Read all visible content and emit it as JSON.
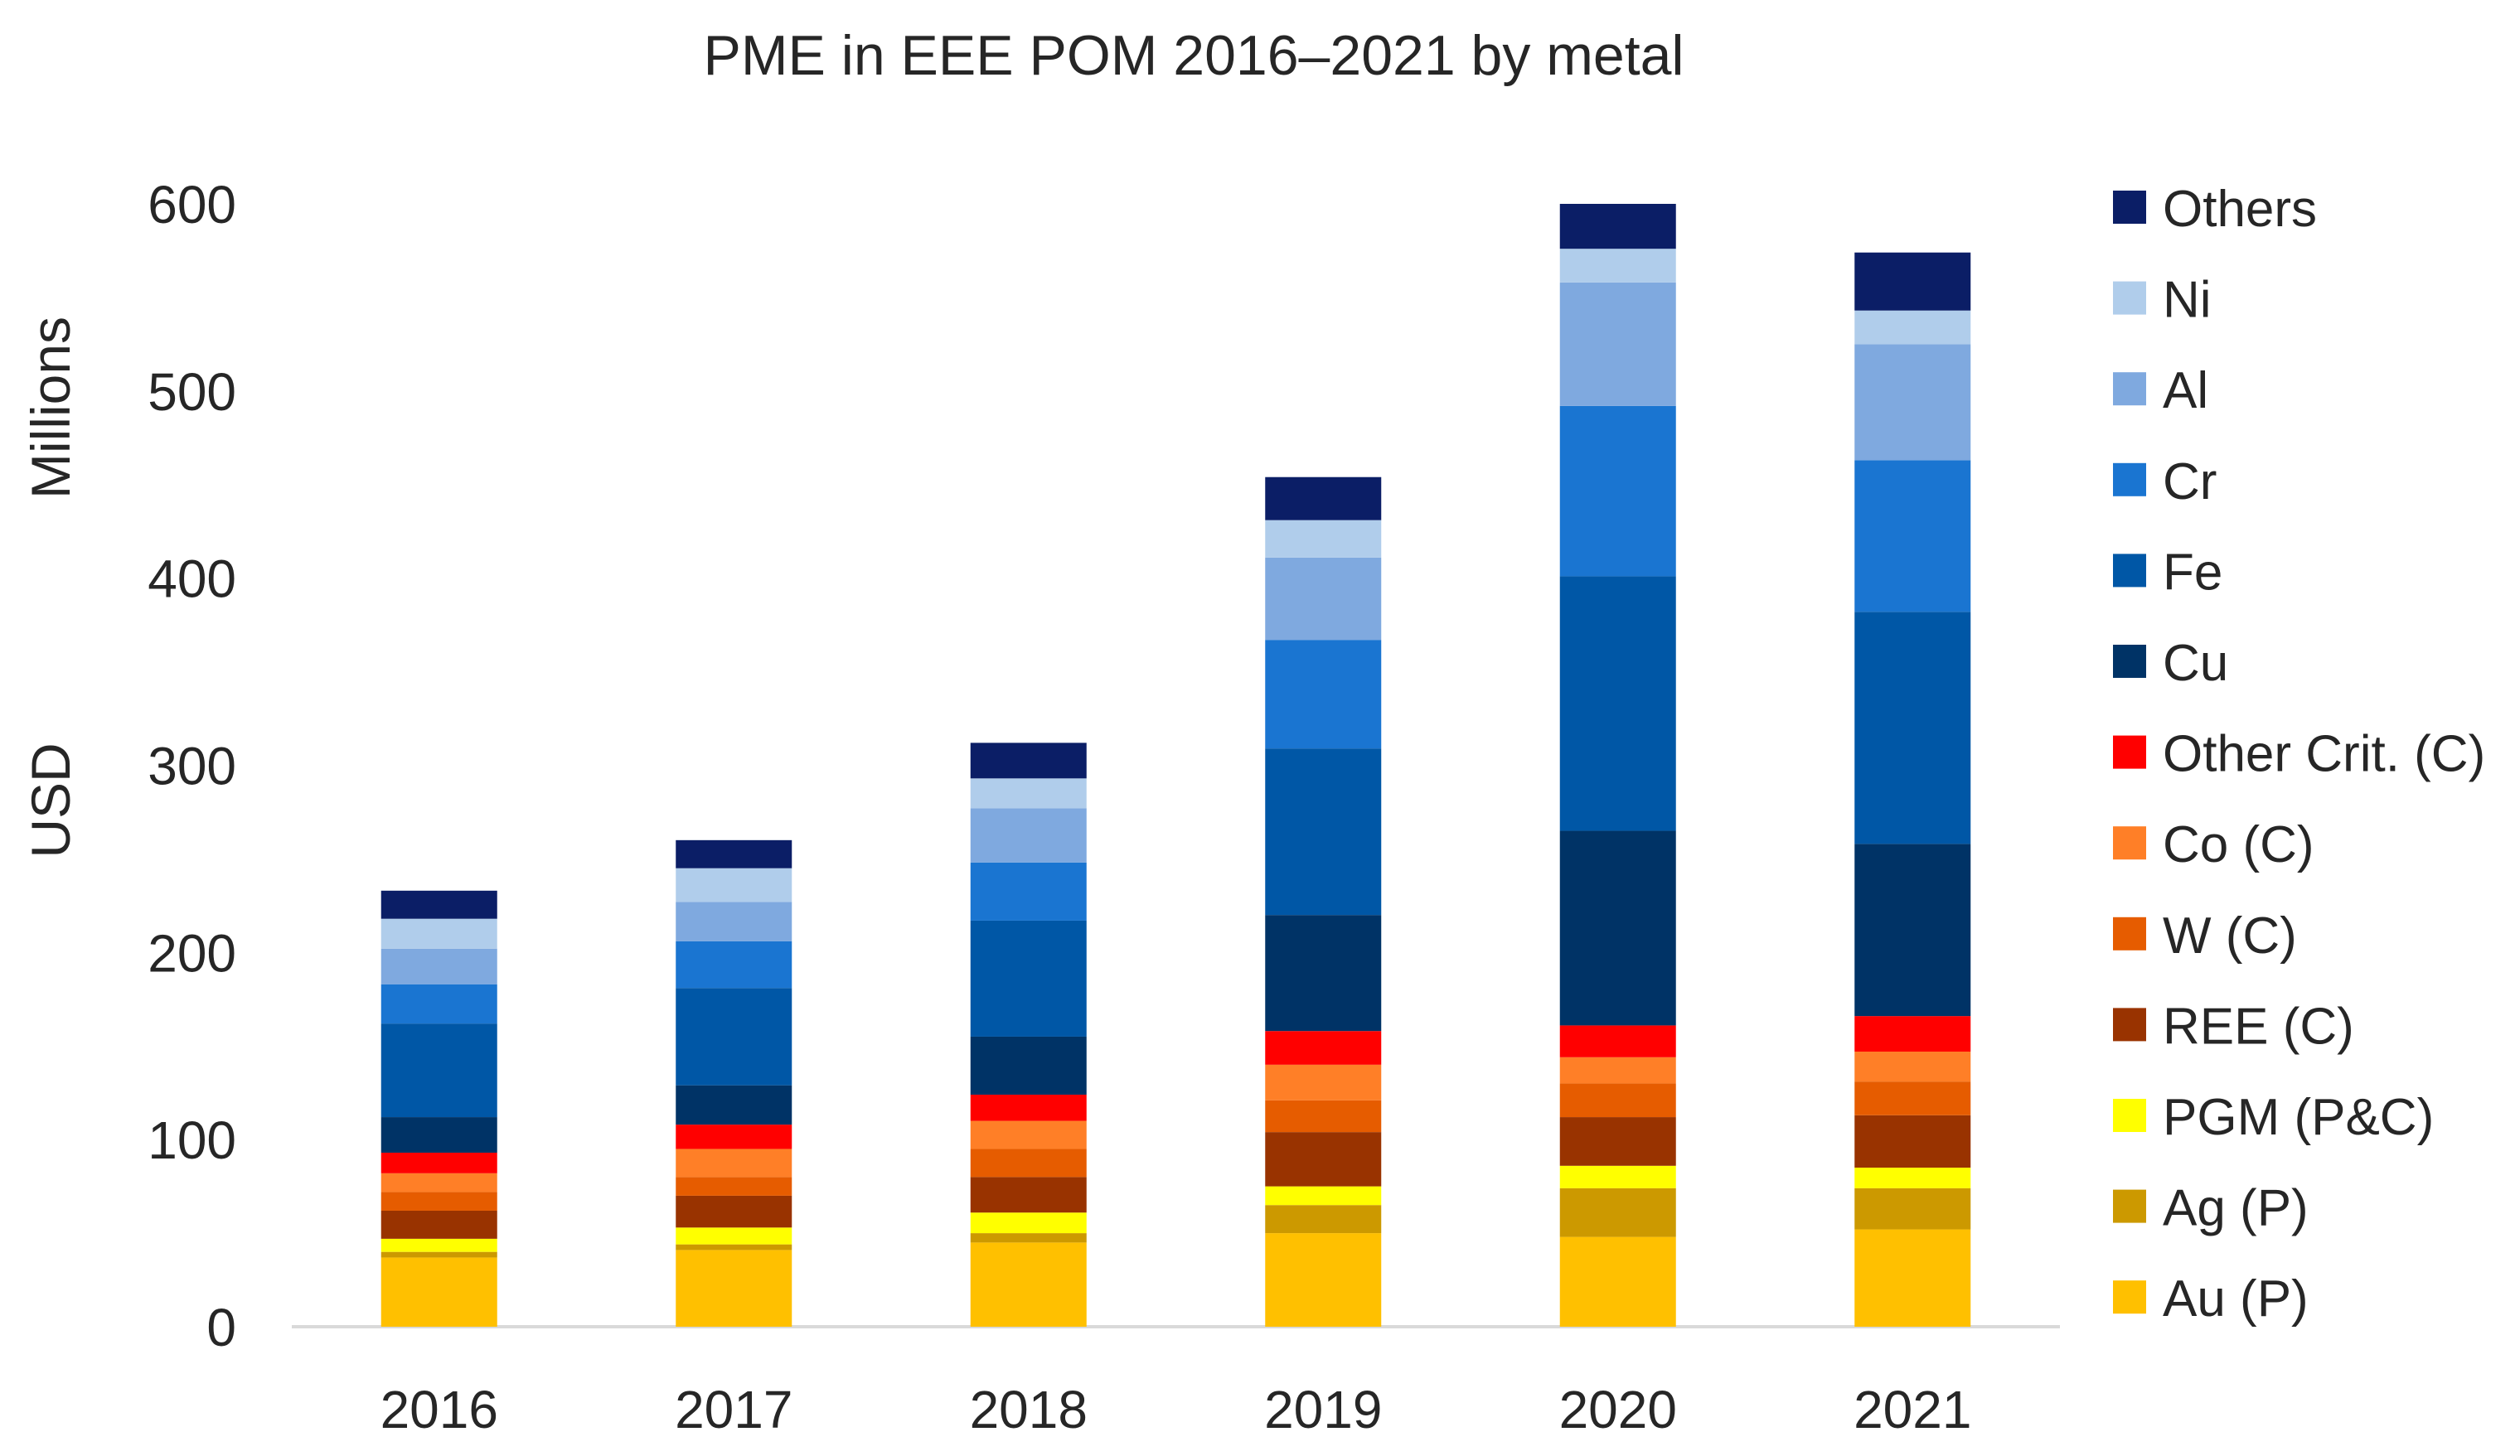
{
  "chart_data": {
    "type": "bar",
    "stacked": true,
    "title": "PME in EEE POM 2016–2021 by metal",
    "xlabel": "",
    "ylabel": "USD",
    "ylabel_unit": "Millions",
    "ylim": [
      0,
      600
    ],
    "yticks": [
      0,
      100,
      200,
      300,
      400,
      500,
      600
    ],
    "grid": false,
    "legend_position": "right",
    "categories": [
      "2016",
      "2017",
      "2018",
      "2019",
      "2020",
      "2021"
    ],
    "series": [
      {
        "name": "Au (P)",
        "color": "#FFC000",
        "values": [
          37,
          41,
          45,
          50,
          48,
          52
        ]
      },
      {
        "name": "Ag (P)",
        "color": "#CC9900",
        "values": [
          3,
          3,
          5,
          15,
          26,
          22
        ]
      },
      {
        "name": "PGM (P&C)",
        "color": "#FFFF00",
        "values": [
          7,
          9,
          11,
          10,
          12,
          11
        ]
      },
      {
        "name": "REE (C)",
        "color": "#993300",
        "values": [
          15,
          17,
          19,
          29,
          26,
          28
        ]
      },
      {
        "name": "W (C)",
        "color": "#E65C00",
        "values": [
          10,
          10,
          15,
          17,
          18,
          18
        ]
      },
      {
        "name": "Co (C)",
        "color": "#FF7F27",
        "values": [
          10,
          15,
          15,
          19,
          14,
          16
        ]
      },
      {
        "name": "Other Crit. (C)",
        "color": "#FF0000",
        "values": [
          11,
          13,
          14,
          18,
          17,
          19
        ]
      },
      {
        "name": "Cu",
        "color": "#003366",
        "values": [
          19,
          21,
          31,
          62,
          104,
          92
        ]
      },
      {
        "name": "Fe",
        "color": "#0057A6",
        "values": [
          50,
          52,
          62,
          89,
          136,
          124
        ]
      },
      {
        "name": "Cr",
        "color": "#1A75D1",
        "values": [
          21,
          25,
          31,
          58,
          91,
          81
        ]
      },
      {
        "name": "Al",
        "color": "#7FA9DF",
        "values": [
          19,
          21,
          29,
          44,
          66,
          62
        ]
      },
      {
        "name": "Ni",
        "color": "#B0CDEB",
        "values": [
          16,
          18,
          16,
          20,
          18,
          18
        ]
      },
      {
        "name": "Others",
        "color": "#0B1E66",
        "values": [
          15,
          15,
          19,
          23,
          24,
          31
        ]
      }
    ]
  }
}
